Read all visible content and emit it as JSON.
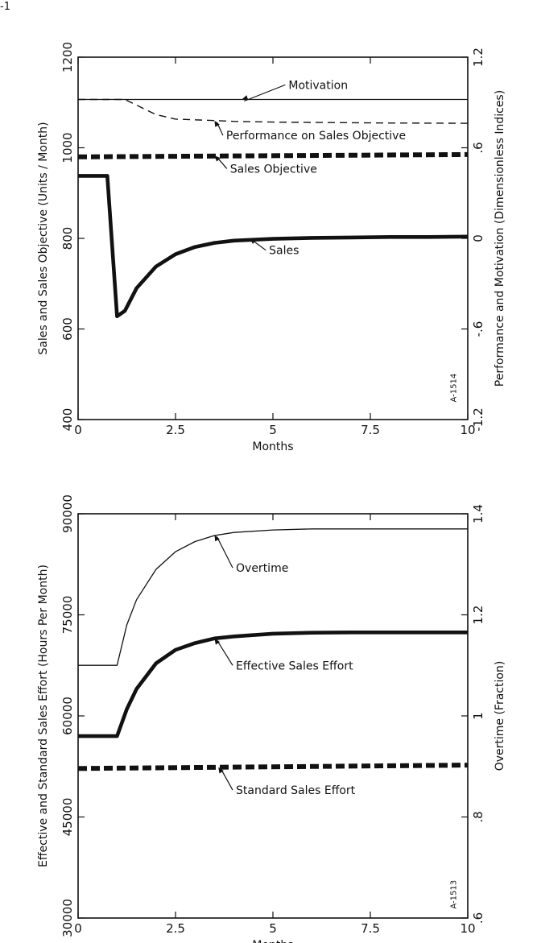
{
  "page_label": "-1",
  "chart_data": [
    {
      "type": "line",
      "xlabel": "Months",
      "ylabel_left": "Sales and Sales Objective  (Units / Month)",
      "ylabel_right": "Performance and Motivation  (Dimensionless Indices)",
      "xlim": [
        0,
        10
      ],
      "ylim_left": [
        400,
        1200
      ],
      "ylim_right": [
        -1.2,
        1.2
      ],
      "x_ticks": [
        "0",
        "2.5",
        "5",
        "7.5",
        "10"
      ],
      "y_ticks_left": [
        "400",
        "600",
        "800",
        "1000",
        "1200"
      ],
      "y_ticks_right": [
        "-1.2",
        "-.6",
        "0",
        ".6",
        "1.2"
      ],
      "figure_id": "A-1514",
      "grid": false,
      "series": [
        {
          "name": "Motivation",
          "axis": "right",
          "style": "thin",
          "x": [
            0,
            10
          ],
          "y": [
            0.92,
            0.92
          ]
        },
        {
          "name": "Performance on Sales Objective",
          "axis": "right",
          "style": "dashed",
          "x": [
            0,
            1.2,
            1.6,
            2,
            2.5,
            3,
            3.5,
            4,
            5,
            6,
            7,
            8,
            9,
            10
          ],
          "y": [
            0.92,
            0.92,
            0.87,
            0.82,
            0.79,
            0.785,
            0.78,
            0.775,
            0.77,
            0.768,
            0.766,
            0.764,
            0.763,
            0.762
          ]
        },
        {
          "name": "Sales Objective",
          "axis": "left",
          "style": "thick-dashed",
          "x": [
            0,
            10
          ],
          "y": [
            980,
            985
          ]
        },
        {
          "name": "Sales",
          "axis": "left",
          "style": "thick",
          "x": [
            0,
            0.75,
            1.0,
            1.2,
            1.5,
            2,
            2.5,
            3,
            3.5,
            4,
            5,
            6,
            7,
            8,
            9,
            10
          ],
          "y": [
            938,
            938,
            628,
            640,
            690,
            738,
            765,
            781,
            790,
            795,
            799,
            801,
            802,
            803,
            803,
            804
          ]
        }
      ]
    },
    {
      "type": "line",
      "xlabel": "Months",
      "ylabel_left": "Effective and Standard Sales Effort  (Hours Per Month)",
      "ylabel_right": "Overtime  (Fraction)",
      "xlim": [
        0,
        10
      ],
      "ylim_left": [
        30000,
        90000
      ],
      "ylim_right": [
        0.6,
        1.4
      ],
      "x_ticks": [
        "0",
        "2.5",
        "5",
        "7.5",
        "10"
      ],
      "y_ticks_left": [
        "30000",
        "45000",
        "60000",
        "75000",
        "90000"
      ],
      "y_ticks_right": [
        ".6",
        ".8",
        "1",
        "1.2",
        "1.4"
      ],
      "figure_id": "A-1513",
      "grid": false,
      "series": [
        {
          "name": "Overtime",
          "axis": "right",
          "style": "thin",
          "x": [
            0,
            1.0,
            1.25,
            1.5,
            2,
            2.5,
            3,
            3.5,
            4,
            5,
            6,
            7,
            8,
            9,
            10
          ],
          "y": [
            1.1,
            1.1,
            1.18,
            1.23,
            1.29,
            1.325,
            1.345,
            1.357,
            1.363,
            1.368,
            1.37,
            1.37,
            1.37,
            1.37,
            1.37
          ]
        },
        {
          "name": "Effective Sales Effort",
          "axis": "left",
          "style": "thick",
          "x": [
            0,
            1.0,
            1.25,
            1.5,
            2,
            2.5,
            3,
            3.5,
            4,
            5,
            6,
            7,
            8,
            9,
            10
          ],
          "y": [
            57000,
            57000,
            61000,
            64000,
            67800,
            69800,
            70800,
            71500,
            71800,
            72200,
            72350,
            72400,
            72400,
            72400,
            72400
          ]
        },
        {
          "name": "Standard Sales Effort",
          "axis": "left",
          "style": "thick-dashed",
          "x": [
            0,
            10
          ],
          "y": [
            52200,
            52700
          ]
        }
      ]
    }
  ]
}
